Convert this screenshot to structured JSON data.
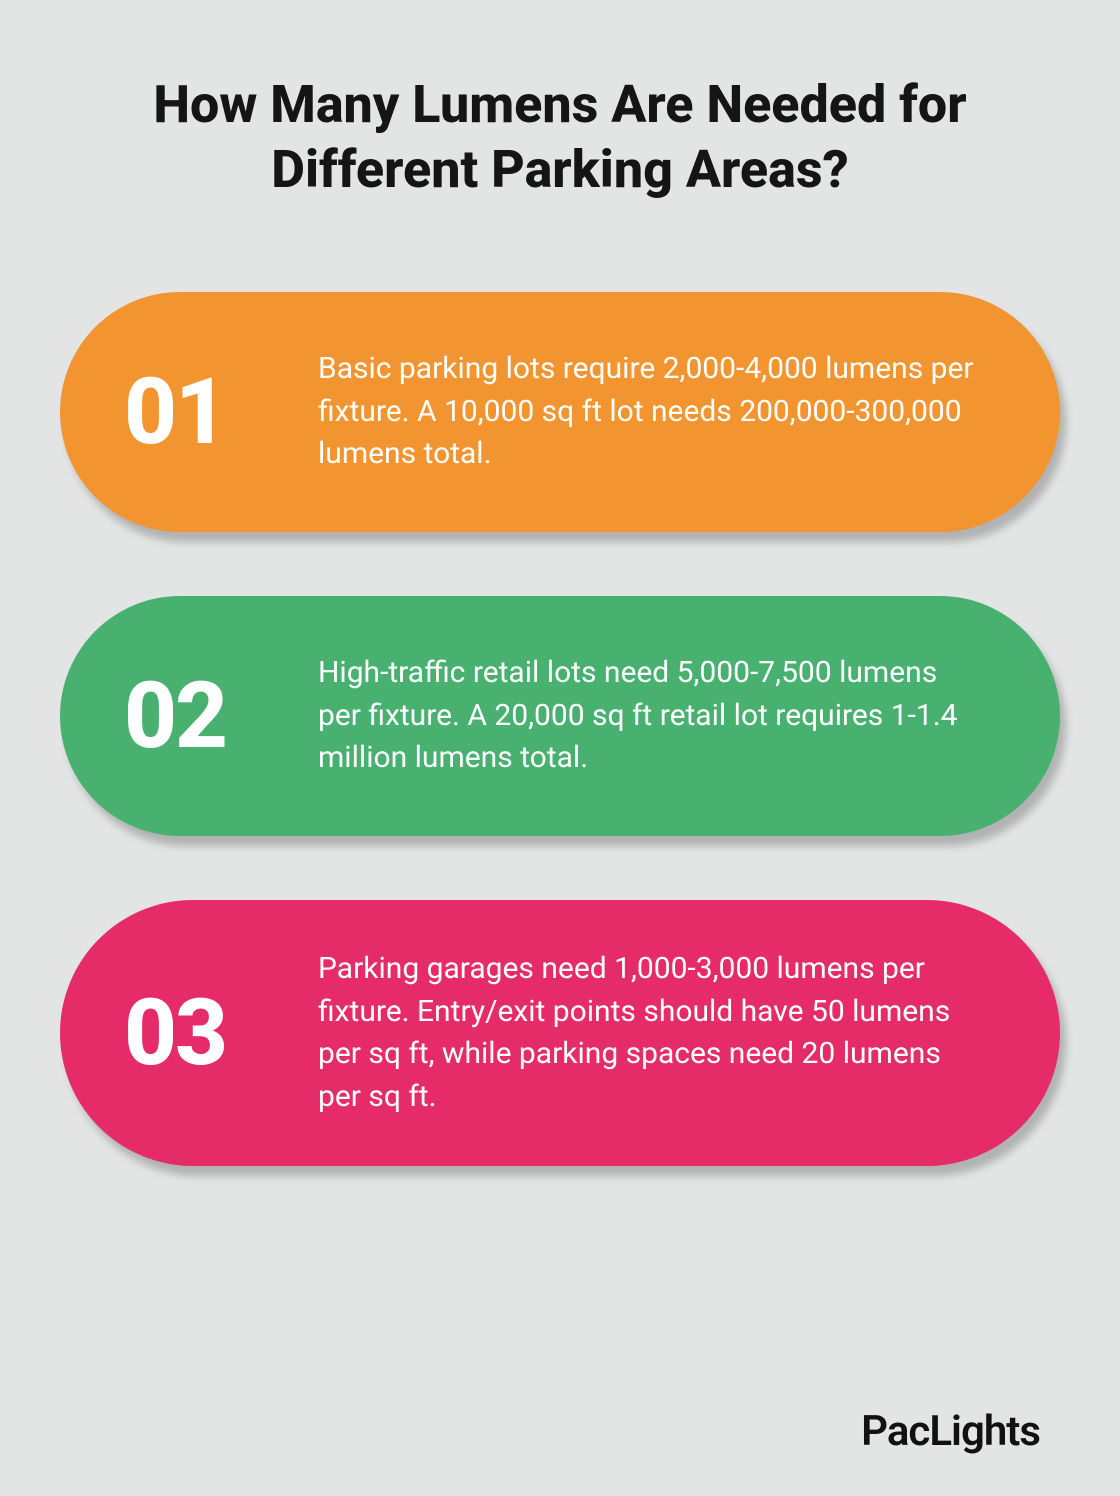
{
  "title": "How Many Lumens Are Needed for Different Parking Areas?",
  "title_fontsize": 52,
  "title_weight": 800,
  "title_color": "#151515",
  "background_color": "#e3e4e4",
  "card_radius": 140,
  "card_shadow": "6px 10px 8px rgba(0,0,0,0.22)",
  "number_fontsize": 92,
  "number_weight": 800,
  "number_color": "#ffffff",
  "body_fontsize": 30,
  "body_color": "#ffffff",
  "cards": [
    {
      "number": "01",
      "text": "Basic parking lots require 2,000-4,000 lumens per fixture. A 10,000 sq ft lot needs 200,000-300,000 lumens total.",
      "bg": "#f2942f"
    },
    {
      "number": "02",
      "text": "High-traffic retail lots need 5,000-7,500 lumens per fixture. A 20,000 sq ft retail lot requires 1-1.4 million lumens total.",
      "bg": "#48b170"
    },
    {
      "number": "03",
      "text": "Parking garages need 1,000-3,000 lumens per fixture. Entry/exit points should have 50 lumens per sq ft, while parking spaces need 20 lumens per sq ft.",
      "bg": "#e52c68"
    }
  ],
  "brand": "PacLights",
  "brand_fontsize": 42,
  "brand_color": "#111111"
}
